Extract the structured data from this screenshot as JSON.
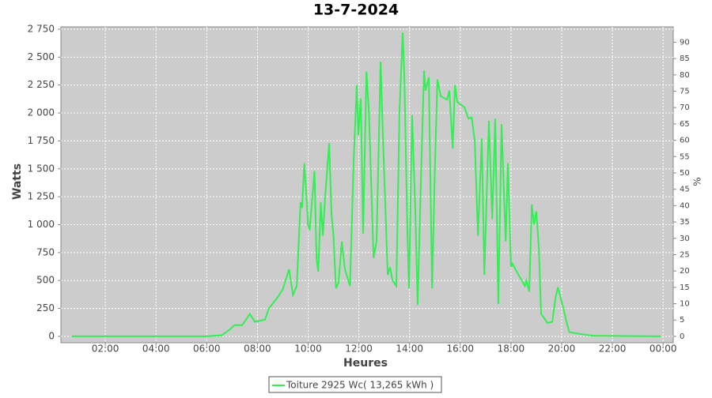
{
  "chart_data": {
    "type": "line",
    "title": "13-7-2024",
    "xlabel": "Heures",
    "ylabel": "Watts",
    "y2label": "%",
    "xlim": [
      0.25,
      24.4
    ],
    "ylim": [
      -57,
      2771
    ],
    "y2lim": [
      -1.95,
      94.7
    ],
    "grid": true,
    "legend": "bottom",
    "xticks": [
      {
        "value": 2,
        "label": "02:00"
      },
      {
        "value": 4,
        "label": "04:00"
      },
      {
        "value": 6,
        "label": "06:00"
      },
      {
        "value": 8,
        "label": "08:00"
      },
      {
        "value": 10,
        "label": "10:00"
      },
      {
        "value": 12,
        "label": "12:00"
      },
      {
        "value": 14,
        "label": "14:00"
      },
      {
        "value": 16,
        "label": "16:00"
      },
      {
        "value": 18,
        "label": "18:00"
      },
      {
        "value": 20,
        "label": "20:00"
      },
      {
        "value": 22,
        "label": "22:00"
      },
      {
        "value": 24,
        "label": "00:00"
      }
    ],
    "yticks": [
      0,
      250,
      500,
      750,
      {
        "value": 1000,
        "label": "1 000"
      },
      {
        "value": 1250,
        "label": "1 250"
      },
      {
        "value": 1500,
        "label": "1 500"
      },
      {
        "value": 1750,
        "label": "1 750"
      },
      {
        "value": 2000,
        "label": "2 000"
      },
      {
        "value": 2250,
        "label": "2 250"
      },
      {
        "value": 2500,
        "label": "2 500"
      },
      {
        "value": 2750,
        "label": "2 750"
      }
    ],
    "y2ticks": [
      0,
      5,
      10,
      15,
      20,
      25,
      30,
      35,
      40,
      45,
      50,
      55,
      60,
      65,
      70,
      75,
      80,
      85,
      90
    ],
    "series": [
      {
        "name": "Toiture 2925 Wc( 13,265 kWh )",
        "color": "#33ee55",
        "x": [
          0.67,
          6.0,
          6.6,
          6.9,
          7.1,
          7.4,
          7.7,
          7.9,
          8.3,
          8.45,
          8.8,
          9.0,
          9.25,
          9.4,
          9.55,
          9.7,
          9.76,
          9.85,
          10.0,
          10.06,
          10.25,
          10.33,
          10.4,
          10.5,
          10.58,
          10.67,
          10.83,
          10.92,
          11.0,
          11.1,
          11.2,
          11.33,
          11.45,
          11.65,
          11.8,
          11.92,
          11.98,
          12.08,
          12.17,
          12.3,
          12.4,
          12.58,
          12.7,
          12.86,
          12.95,
          13.14,
          13.23,
          13.33,
          13.48,
          13.6,
          13.73,
          13.79,
          13.92,
          13.98,
          14.1,
          14.23,
          14.32,
          14.45,
          14.57,
          14.63,
          14.76,
          14.89,
          15.0,
          15.1,
          15.23,
          15.48,
          15.57,
          15.7,
          15.79,
          15.88,
          16.17,
          16.32,
          16.45,
          16.57,
          16.7,
          16.85,
          16.95,
          17.13,
          17.26,
          17.38,
          17.5,
          17.63,
          17.79,
          17.88,
          18.0,
          18.06,
          18.3,
          18.55,
          18.61,
          18.72,
          18.82,
          18.91,
          19.0,
          19.1,
          19.19,
          19.35,
          19.44,
          19.63,
          19.76,
          19.85,
          20.07,
          20.2,
          20.3,
          20.5,
          20.78,
          21.25,
          23.9
        ],
        "values": [
          0,
          0,
          10,
          60,
          100,
          100,
          200,
          130,
          150,
          250,
          350,
          420,
          600,
          370,
          450,
          1200,
          1150,
          1550,
          1000,
          950,
          1480,
          700,
          580,
          1200,
          900,
          1250,
          1730,
          1100,
          900,
          430,
          480,
          850,
          600,
          450,
          1600,
          2250,
          1800,
          2130,
          920,
          2370,
          2000,
          700,
          850,
          2460,
          1800,
          550,
          620,
          500,
          450,
          2000,
          2720,
          2350,
          900,
          430,
          1980,
          1100,
          280,
          1400,
          2380,
          2200,
          2320,
          430,
          1500,
          2300,
          2150,
          2120,
          2200,
          1680,
          2250,
          2100,
          2050,
          1950,
          1960,
          1750,
          900,
          1770,
          550,
          1930,
          1050,
          1950,
          290,
          1900,
          850,
          1550,
          620,
          650,
          550,
          450,
          500,
          400,
          1180,
          1000,
          1120,
          800,
          200,
          150,
          120,
          130,
          350,
          440,
          250,
          120,
          40,
          30,
          20,
          5,
          0
        ]
      }
    ]
  }
}
